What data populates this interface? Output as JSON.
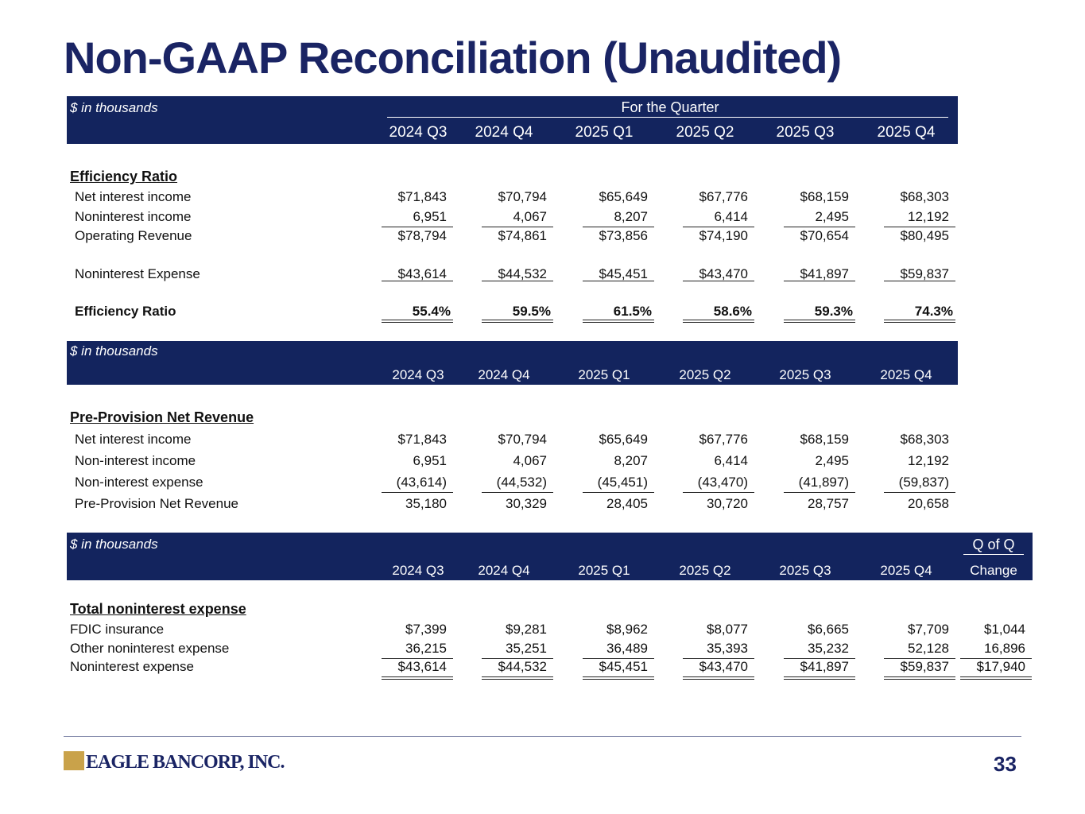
{
  "title": "Non-GAAP Reconciliation (Unaudited)",
  "tables": [
    {
      "unit": "$ in thousands",
      "group": "For the Quarter",
      "columns": [
        "2024 Q3",
        "2024 Q4",
        "2025 Q1",
        "2025 Q2",
        "2025 Q3",
        "2025 Q4"
      ],
      "section": "Efficiency Ratio",
      "rows": [
        {
          "label": "Net interest income",
          "values": [
            "$71,843",
            "$70,794",
            "$65,649",
            "$67,776",
            "$68,159",
            "$68,303"
          ]
        },
        {
          "label": "Noninterest income",
          "values": [
            "6,951",
            "4,067",
            "8,207",
            "6,414",
            "2,495",
            "12,192"
          ]
        },
        {
          "label": "Operating Revenue",
          "values": [
            "$78,794",
            "$74,861",
            "$73,856",
            "$74,190",
            "$70,654",
            "$80,495"
          ]
        },
        {
          "label": "Noninterest Expense",
          "values": [
            "$43,614",
            "$44,532",
            "$45,451",
            "$43,470",
            "$41,897",
            "$59,837"
          ]
        },
        {
          "label": "Efficiency Ratio",
          "values": [
            "55.4%",
            "59.5%",
            "61.5%",
            "58.6%",
            "59.3%",
            "74.3%"
          ]
        }
      ]
    },
    {
      "unit": "$ in thousands",
      "columns": [
        "2024 Q3",
        "2024 Q4",
        "2025 Q1",
        "2025 Q2",
        "2025 Q3",
        "2025 Q4"
      ],
      "section": "Pre-Provision Net Revenue",
      "rows": [
        {
          "label": "Net interest income",
          "values": [
            "$71,843",
            "$70,794",
            "$65,649",
            "$67,776",
            "$68,159",
            "$68,303"
          ]
        },
        {
          "label": "Non-interest income",
          "values": [
            "6,951",
            "4,067",
            "8,207",
            "6,414",
            "2,495",
            "12,192"
          ]
        },
        {
          "label": "Non-interest expense",
          "values": [
            "(43,614)",
            "(44,532)",
            "(45,451)",
            "(43,470)",
            "(41,897)",
            "(59,837)"
          ]
        },
        {
          "label": "Pre-Provision Net Revenue",
          "values": [
            "35,180",
            "30,329",
            "28,405",
            "30,720",
            "28,757",
            "20,658"
          ]
        }
      ]
    },
    {
      "unit": "$ in thousands",
      "group": "Q of Q",
      "columns": [
        "2024 Q3",
        "2024 Q4",
        "2025 Q1",
        "2025 Q2",
        "2025 Q3",
        "2025 Q4",
        "Change"
      ],
      "section": "Total noninterest expense",
      "rows": [
        {
          "label": "FDIC insurance",
          "values": [
            "$7,399",
            "$9,281",
            "$8,962",
            "$8,077",
            "$6,665",
            "$7,709",
            "$1,044"
          ]
        },
        {
          "label": "Other noninterest expense",
          "values": [
            "36,215",
            "35,251",
            "36,489",
            "35,393",
            "35,232",
            "52,128",
            "16,896"
          ]
        },
        {
          "label": "Noninterest expense",
          "values": [
            "$43,614",
            "$44,532",
            "$45,451",
            "$43,470",
            "$41,897",
            "$59,837",
            "$17,940"
          ]
        }
      ]
    }
  ],
  "footer": {
    "logo": "EAGLE BANCORP, INC.",
    "page": "33"
  }
}
